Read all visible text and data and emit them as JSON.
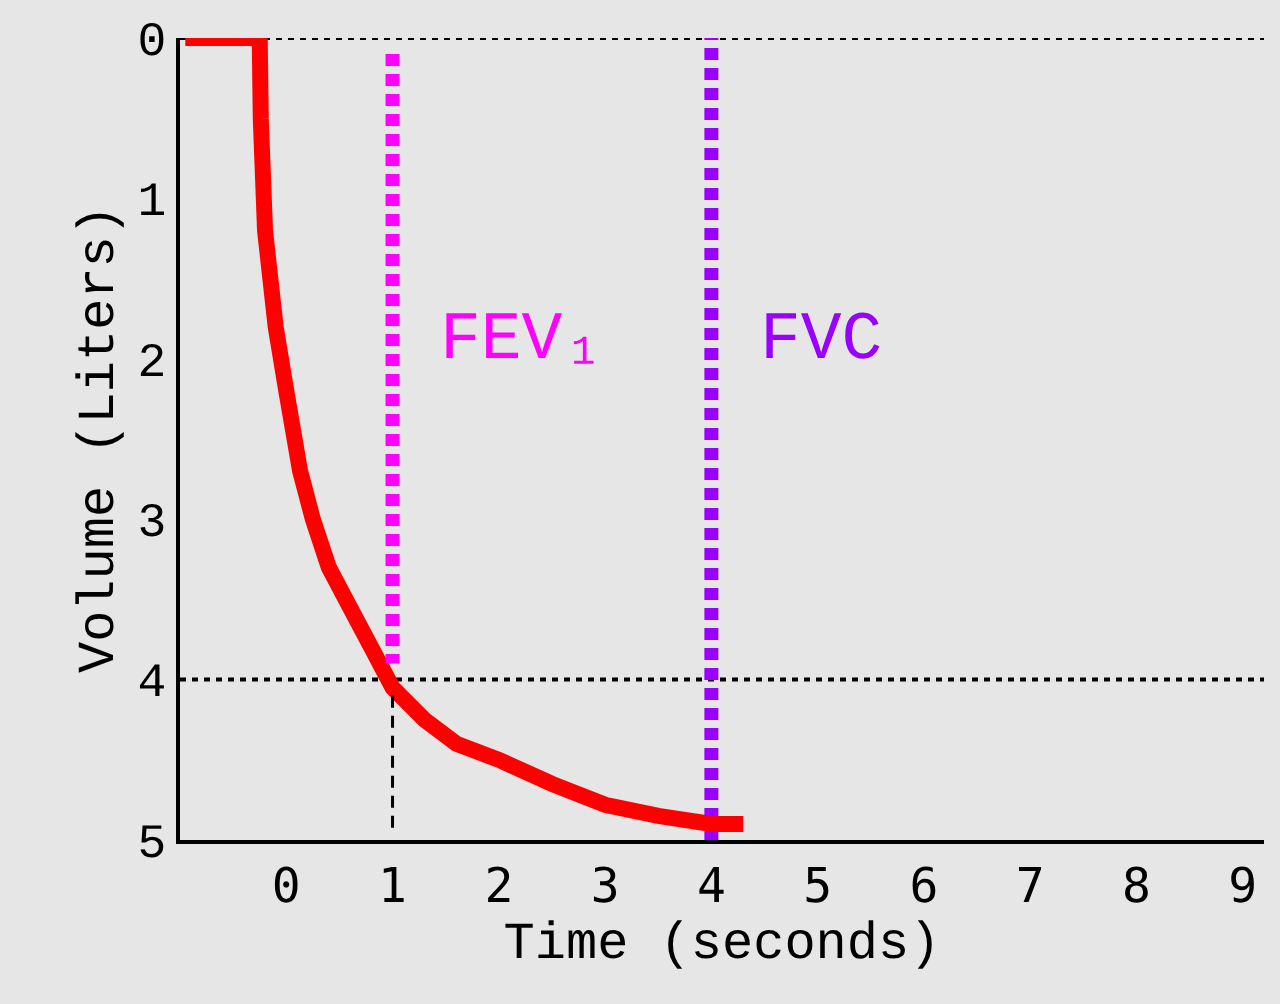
{
  "chart_data": {
    "type": "line",
    "xlabel": "Time (seconds)",
    "ylabel": "Volume (Liters)",
    "xlim": [
      -1,
      9.2
    ],
    "xticks": [
      0,
      1,
      2,
      3,
      4,
      5,
      6,
      7,
      8,
      9
    ],
    "ylim": [
      5,
      0
    ],
    "yticks": [
      0,
      1,
      2,
      3,
      4,
      5
    ],
    "grid": false,
    "legend": false,
    "marker": "none",
    "series": [
      {
        "color": "#ff0000",
        "line_style": "solid",
        "x": [
          -0.95,
          -0.25,
          -0.24,
          -0.2,
          -0.1,
          0,
          0.13,
          0.25,
          0.4,
          0.6,
          0.8,
          1.0,
          1.3,
          1.6,
          2.0,
          2.5,
          3.0,
          3.5,
          4.0,
          4.3
        ],
        "values": [
          0,
          0,
          0.5,
          1.2,
          1.8,
          2.2,
          2.7,
          3.0,
          3.3,
          3.55,
          3.8,
          4.05,
          4.25,
          4.4,
          4.5,
          4.65,
          4.78,
          4.85,
          4.9,
          4.9
        ]
      },
      {
        "color": "#000000",
        "line_style": "dashed",
        "x": [
          1,
          1
        ],
        "values": [
          4.1,
          4.95
        ]
      },
      {
        "name": "FEV₁",
        "color": "#ff00ff",
        "line_style": "dashed",
        "x": [
          1,
          1
        ],
        "values": [
          0.1,
          3.9
        ]
      }
    ],
    "ref_lines": [
      {
        "axis": "y",
        "value": 0,
        "label": null,
        "color": "#000000",
        "line_style": "dotted"
      },
      {
        "axis": "y",
        "value": 4,
        "label": null,
        "color": "#000000",
        "line_style": "dotted"
      },
      {
        "axis": "x",
        "value": 4,
        "label": "FVC",
        "color": "#9900ff",
        "line_style": "dashed"
      }
    ]
  }
}
